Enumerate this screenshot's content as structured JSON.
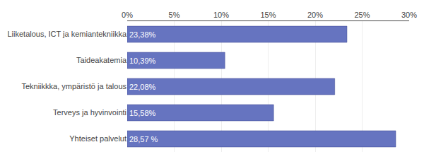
{
  "chart_data": {
    "type": "bar",
    "orientation": "horizontal",
    "categories": [
      "Liiketalous, ICT ja kemiantekniikka",
      "Taideakatemia",
      "Tekniikkka, ympäristö ja talous",
      "Terveys ja hyvinvointi",
      "Yhteiset palvelut"
    ],
    "values": [
      23.38,
      10.39,
      22.08,
      15.58,
      28.57
    ],
    "value_labels": [
      "23,38%",
      "10,39%",
      "22,08%",
      "15,58%",
      "28,57 %"
    ],
    "data_labels": true,
    "color": "#6674c0",
    "xlim": [
      0,
      30
    ],
    "xticks": [
      {
        "value": 0,
        "label": "0%"
      },
      {
        "value": 5,
        "label": "5%"
      },
      {
        "value": 10,
        "label": "10%"
      },
      {
        "value": 15,
        "label": "15%"
      },
      {
        "value": 20,
        "label": "20%"
      },
      {
        "value": 25,
        "label": "25%"
      },
      {
        "value": 30,
        "label": "30%"
      }
    ],
    "grid": true
  }
}
